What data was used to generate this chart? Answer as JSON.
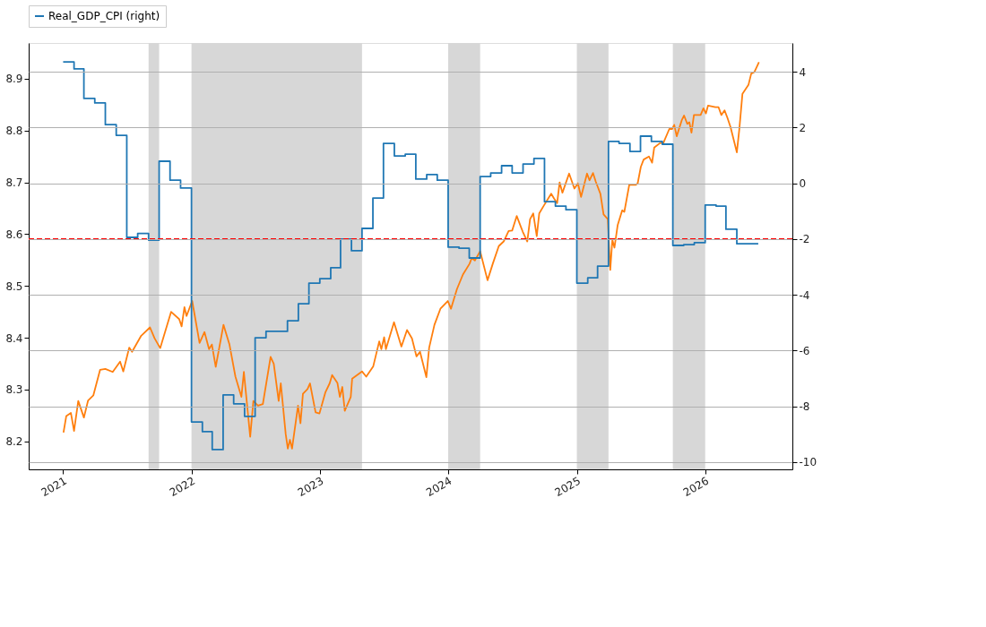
{
  "chart_data": {
    "type": "line",
    "xlim": [
      "2020-09-25",
      "2026-09-06"
    ],
    "xticks": [
      {
        "value": "2021-01-01",
        "label": "2021"
      },
      {
        "value": "2022-01-01",
        "label": "2022"
      },
      {
        "value": "2023-01-01",
        "label": "2023"
      },
      {
        "value": "2024-01-01",
        "label": "2024"
      },
      {
        "value": "2025-01-01",
        "label": "2025"
      },
      {
        "value": "2026-01-01",
        "label": "2026"
      }
    ],
    "ylim": [
      8.146,
      8.969
    ],
    "yticks": [
      8.2,
      8.3,
      8.4,
      8.5,
      8.6,
      8.7,
      8.8,
      8.9
    ],
    "y2lim": [
      -10.26,
      5.03
    ],
    "y2ticks": [
      -10,
      -8,
      -6,
      -4,
      -2,
      0,
      2,
      4
    ],
    "grid": "y2",
    "legend": "top",
    "bands": [
      {
        "axis": "x",
        "from": "2021-09-01",
        "to": "2021-10-01",
        "color": "#d7d7d7"
      },
      {
        "axis": "x",
        "from": "2022-01-01",
        "to": "2023-05-01",
        "color": "#d7d7d7"
      },
      {
        "axis": "x",
        "from": "2024-01-01",
        "to": "2024-04-01",
        "color": "#d7d7d7"
      },
      {
        "axis": "x",
        "from": "2025-01-01",
        "to": "2025-04-01",
        "color": "#d7d7d7"
      },
      {
        "axis": "x",
        "from": "2025-10-01",
        "to": "2026-01-01",
        "color": "#d7d7d7"
      }
    ],
    "ref_lines": [
      {
        "axis": "y2",
        "value": -2,
        "color": "#ff0000",
        "line_style": "dashed"
      }
    ],
    "series": [
      {
        "name": "Real_GDP_CPI (right)",
        "type": "step",
        "axis": "y2",
        "color": "#1f77b4",
        "x": [
          "2021-01-01",
          "2021-02-01",
          "2021-03-01",
          "2021-04-01",
          "2021-05-01",
          "2021-06-01",
          "2021-07-01",
          "2021-08-01",
          "2021-09-01",
          "2021-10-01",
          "2021-11-01",
          "2021-12-01",
          "2022-01-01",
          "2022-02-01",
          "2022-03-01",
          "2022-04-01",
          "2022-05-01",
          "2022-06-01",
          "2022-07-01",
          "2022-08-01",
          "2022-09-01",
          "2022-10-01",
          "2022-11-01",
          "2022-12-01",
          "2023-01-01",
          "2023-02-01",
          "2023-03-01",
          "2023-04-01",
          "2023-05-01",
          "2023-06-01",
          "2023-07-01",
          "2023-08-01",
          "2023-09-01",
          "2023-10-01",
          "2023-11-01",
          "2023-12-01",
          "2024-01-01",
          "2024-02-01",
          "2024-03-01",
          "2024-04-01",
          "2024-05-01",
          "2024-06-01",
          "2024-07-01",
          "2024-08-01",
          "2024-09-01",
          "2024-10-01",
          "2024-11-01",
          "2024-12-01",
          "2025-01-01",
          "2025-02-01",
          "2025-03-01",
          "2025-04-01",
          "2025-05-01",
          "2025-06-01",
          "2025-07-01",
          "2025-08-01",
          "2025-09-01",
          "2025-10-01",
          "2025-11-01",
          "2025-12-01",
          "2026-01-01",
          "2026-02-01",
          "2026-03-01",
          "2026-04-01",
          "2026-05-01",
          "2026-06-01"
        ],
        "values": [
          4.35,
          4.1,
          3.04,
          2.88,
          2.1,
          1.72,
          -1.94,
          -1.8,
          -2.04,
          0.79,
          0.11,
          -0.17,
          -8.56,
          -8.91,
          -9.55,
          -7.59,
          -7.91,
          -8.36,
          -5.54,
          -5.31,
          -5.31,
          -4.93,
          -4.32,
          -3.58,
          -3.42,
          -3.03,
          -2.0,
          -2.42,
          -1.62,
          -0.53,
          1.43,
          0.98,
          1.04,
          0.15,
          0.31,
          0.11,
          -2.29,
          -2.33,
          -2.68,
          0.24,
          0.37,
          0.63,
          0.37,
          0.69,
          0.89,
          -0.66,
          -0.82,
          -0.95,
          -3.58,
          -3.39,
          -2.97,
          1.5,
          1.43,
          1.14,
          1.69,
          1.5,
          1.4,
          -2.23,
          -2.2,
          -2.13,
          -0.78,
          -0.82,
          -1.65,
          -2.17,
          -2.17,
          -2.17
        ]
      },
      {
        "axis": "y",
        "color": "#ff7f0e",
        "x": [
          "2021-01-02",
          "2021-01-10",
          "2021-01-23",
          "2021-02-01",
          "2021-02-13",
          "2021-03-01",
          "2021-03-13",
          "2021-03-28",
          "2021-04-16",
          "2021-05-01",
          "2021-05-22",
          "2021-06-12",
          "2021-06-21",
          "2021-07-08",
          "2021-07-16",
          "2021-08-11",
          "2021-09-05",
          "2021-09-18",
          "2021-10-04",
          "2021-11-04",
          "2021-11-27",
          "2021-12-04",
          "2021-12-12",
          "2021-12-18",
          "2022-01-03",
          "2022-01-24",
          "2022-02-07",
          "2022-02-20",
          "2022-02-28",
          "2022-03-11",
          "2022-04-02",
          "2022-04-19",
          "2022-05-06",
          "2022-05-23",
          "2022-05-30",
          "2022-06-17",
          "2022-06-26",
          "2022-07-09",
          "2022-07-23",
          "2022-08-14",
          "2022-08-23",
          "2022-09-06",
          "2022-09-12",
          "2022-09-26",
          "2022-10-02",
          "2022-10-08",
          "2022-10-14",
          "2022-10-31",
          "2022-11-07",
          "2022-11-14",
          "2022-11-27",
          "2022-12-04",
          "2022-12-20",
          "2022-12-31",
          "2023-01-17",
          "2023-01-29",
          "2023-02-05",
          "2023-02-20",
          "2023-02-27",
          "2023-03-06",
          "2023-03-13",
          "2023-03-30",
          "2023-04-03",
          "2023-05-01",
          "2023-05-13",
          "2023-06-02",
          "2023-06-19",
          "2023-06-25",
          "2023-07-03",
          "2023-07-08",
          "2023-07-31",
          "2023-08-21",
          "2023-09-06",
          "2023-09-20",
          "2023-10-03",
          "2023-10-13",
          "2023-10-31",
          "2023-11-08",
          "2023-11-23",
          "2023-12-10",
          "2023-12-31",
          "2024-01-09",
          "2024-01-26",
          "2024-02-12",
          "2024-03-02",
          "2024-03-08",
          "2024-03-17",
          "2024-04-01",
          "2024-04-22",
          "2024-05-07",
          "2024-05-24",
          "2024-06-07",
          "2024-06-21",
          "2024-07-01",
          "2024-07-14",
          "2024-07-31",
          "2024-08-13",
          "2024-08-21",
          "2024-08-30",
          "2024-09-09",
          "2024-09-16",
          "2024-09-29",
          "2024-10-20",
          "2024-10-28",
          "2024-11-06",
          "2024-11-13",
          "2024-11-21",
          "2024-12-10",
          "2024-12-25",
          "2025-01-04",
          "2025-01-13",
          "2025-01-30",
          "2025-02-06",
          "2025-02-16",
          "2025-02-24",
          "2025-03-09",
          "2025-03-18",
          "2025-03-30",
          "2025-04-06",
          "2025-04-12",
          "2025-04-18",
          "2025-04-27",
          "2025-05-10",
          "2025-05-16",
          "2025-05-30",
          "2025-06-17",
          "2025-06-23",
          "2025-07-02",
          "2025-07-10",
          "2025-07-25",
          "2025-08-03",
          "2025-08-09",
          "2025-08-26",
          "2025-09-04",
          "2025-09-21",
          "2025-09-29",
          "2025-10-05",
          "2025-10-12",
          "2025-10-27",
          "2025-11-02",
          "2025-11-11",
          "2025-11-17",
          "2025-11-23",
          "2025-11-30",
          "2025-12-19",
          "2025-12-27",
          "2026-01-03",
          "2026-01-09",
          "2026-01-30",
          "2026-02-08",
          "2026-02-16",
          "2026-02-25",
          "2026-03-05",
          "2026-03-14",
          "2026-04-01",
          "2026-04-08",
          "2026-04-17",
          "2026-05-04",
          "2026-05-12",
          "2026-05-21",
          "2026-06-03"
        ],
        "values": [
          8.217,
          8.249,
          8.255,
          8.22,
          8.278,
          8.246,
          8.279,
          8.289,
          8.338,
          8.34,
          8.334,
          8.354,
          8.335,
          8.381,
          8.373,
          8.404,
          8.42,
          8.399,
          8.38,
          8.45,
          8.436,
          8.422,
          8.459,
          8.442,
          8.471,
          8.39,
          8.411,
          8.378,
          8.387,
          8.344,
          8.425,
          8.387,
          8.325,
          8.286,
          8.334,
          8.209,
          8.278,
          8.269,
          8.272,
          8.363,
          8.35,
          8.278,
          8.312,
          8.214,
          8.186,
          8.203,
          8.186,
          8.269,
          8.235,
          8.292,
          8.301,
          8.312,
          8.256,
          8.254,
          8.295,
          8.312,
          8.328,
          8.313,
          8.286,
          8.305,
          8.259,
          8.286,
          8.321,
          8.335,
          8.325,
          8.345,
          8.393,
          8.378,
          8.401,
          8.378,
          8.43,
          8.383,
          8.415,
          8.399,
          8.364,
          8.373,
          8.324,
          8.381,
          8.425,
          8.456,
          8.471,
          8.456,
          8.494,
          8.522,
          8.543,
          8.554,
          8.549,
          8.567,
          8.511,
          8.543,
          8.577,
          8.586,
          8.606,
          8.607,
          8.635,
          8.605,
          8.586,
          8.629,
          8.64,
          8.596,
          8.64,
          8.655,
          8.678,
          8.669,
          8.66,
          8.7,
          8.68,
          8.717,
          8.688,
          8.698,
          8.672,
          8.717,
          8.704,
          8.718,
          8.701,
          8.678,
          8.638,
          8.629,
          8.531,
          8.589,
          8.574,
          8.617,
          8.646,
          8.643,
          8.695,
          8.695,
          8.698,
          8.73,
          8.744,
          8.75,
          8.738,
          8.767,
          8.776,
          8.776,
          8.803,
          8.803,
          8.811,
          8.789,
          8.821,
          8.829,
          8.813,
          8.816,
          8.796,
          8.83,
          8.83,
          8.843,
          8.833,
          8.848,
          8.845,
          8.845,
          8.83,
          8.839,
          8.825,
          8.807,
          8.758,
          8.802,
          8.871,
          8.888,
          8.91,
          8.913,
          8.932
        ]
      }
    ]
  }
}
